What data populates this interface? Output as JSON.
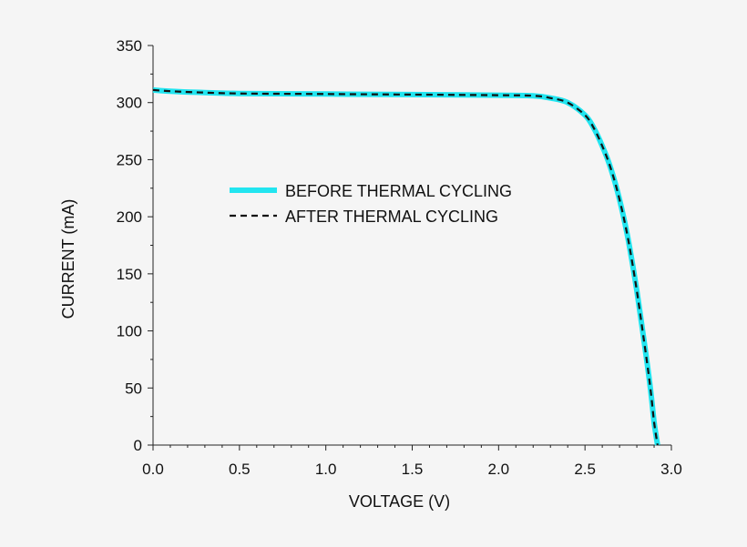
{
  "chart_data": {
    "type": "line",
    "title": "",
    "xlabel": "VOLTAGE (V)",
    "ylabel": "CURRENT (mA)",
    "xlim": [
      0,
      3.0
    ],
    "ylim": [
      0,
      350
    ],
    "x_ticks": [
      0.0,
      0.5,
      1.0,
      1.5,
      2.0,
      2.5,
      3.0
    ],
    "x_tick_labels": [
      "0.0",
      "0.5",
      "1.0",
      "1.5",
      "2.0",
      "2.5",
      "3.0"
    ],
    "y_ticks": [
      0,
      50,
      100,
      150,
      200,
      250,
      300,
      350
    ],
    "y_tick_labels": [
      "0",
      "50",
      "100",
      "150",
      "200",
      "250",
      "300",
      "350"
    ],
    "grid": false,
    "legend_position": "center-left",
    "series": [
      {
        "name": "BEFORE THERMAL CYCLING",
        "color": "#22e5f0",
        "style": "solid",
        "x": [
          0,
          0.1,
          0.25,
          0.5,
          1.0,
          1.5,
          2.0,
          2.2,
          2.3,
          2.4,
          2.5,
          2.55,
          2.6,
          2.65,
          2.7,
          2.75,
          2.8,
          2.85,
          2.88,
          2.9,
          2.92
        ],
        "y": [
          311,
          310,
          309,
          308,
          307.5,
          307,
          306.5,
          306,
          304,
          300,
          289,
          278,
          262,
          242,
          215,
          180,
          135,
          82,
          48,
          20,
          0
        ]
      },
      {
        "name": "AFTER THERMAL CYCLING",
        "color": "#111111",
        "style": "dashed",
        "x": [
          0,
          0.1,
          0.25,
          0.5,
          1.0,
          1.5,
          2.0,
          2.2,
          2.3,
          2.4,
          2.5,
          2.55,
          2.6,
          2.65,
          2.7,
          2.75,
          2.8,
          2.85,
          2.88,
          2.9,
          2.92
        ],
        "y": [
          311,
          310,
          309,
          308,
          307.5,
          307,
          306.5,
          306,
          304,
          300,
          289,
          278,
          262,
          242,
          215,
          180,
          135,
          82,
          48,
          20,
          0
        ]
      }
    ]
  }
}
